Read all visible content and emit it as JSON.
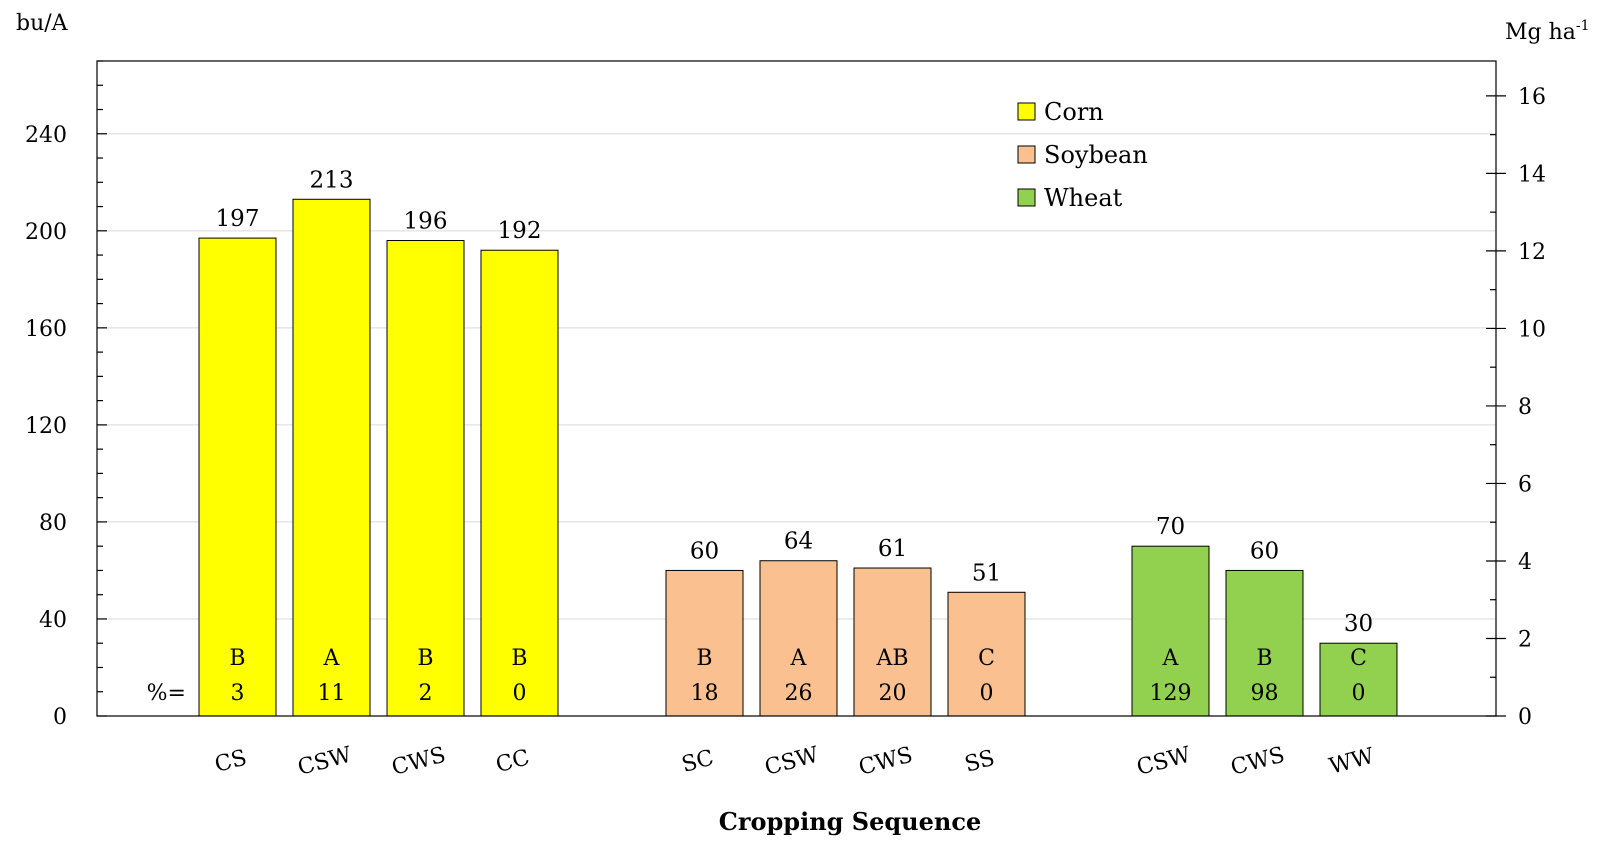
{
  "chart_data": {
    "type": "bar",
    "title": "",
    "xlabel": "Cropping Sequence",
    "ylabel_left": "bu/A",
    "ylabel_right": "Mg ha-1",
    "ylim_left": [
      0,
      270
    ],
    "ylim_right": [
      0,
      16.9
    ],
    "yticks_left": [
      0,
      40,
      80,
      120,
      160,
      200,
      240
    ],
    "yticks_right": [
      0,
      2,
      4,
      6,
      8,
      10,
      12,
      14,
      16
    ],
    "grid": true,
    "legend_position": "top-right",
    "legend": [
      {
        "name": "Corn",
        "color": "#ffff00"
      },
      {
        "name": "Soybean",
        "color": "#fac090"
      },
      {
        "name": "Wheat",
        "color": "#92d050"
      }
    ],
    "percent_prefix": "%=",
    "groups": [
      {
        "crop": "Corn",
        "color": "#ffff00",
        "bars": [
          {
            "category": "CS",
            "value": 197,
            "letter": "B",
            "percent": "3"
          },
          {
            "category": "CSW",
            "value": 213,
            "letter": "A",
            "percent": "11"
          },
          {
            "category": "CWS",
            "value": 196,
            "letter": "B",
            "percent": "2"
          },
          {
            "category": "CC",
            "value": 192,
            "letter": "B",
            "percent": "0"
          }
        ]
      },
      {
        "crop": "Soybean",
        "color": "#fac090",
        "bars": [
          {
            "category": "SC",
            "value": 60,
            "letter": "B",
            "percent": "18"
          },
          {
            "category": "CSW",
            "value": 64,
            "letter": "A",
            "percent": "26"
          },
          {
            "category": "CWS",
            "value": 61,
            "letter": "AB",
            "percent": "20"
          },
          {
            "category": "SS",
            "value": 51,
            "letter": "C",
            "percent": "0"
          }
        ]
      },
      {
        "crop": "Wheat",
        "color": "#92d050",
        "bars": [
          {
            "category": "CSW",
            "value": 70,
            "letter": "A",
            "percent": "129"
          },
          {
            "category": "CWS",
            "value": 60,
            "letter": "B",
            "percent": "98"
          },
          {
            "category": "WW",
            "value": 30,
            "letter": "C",
            "percent": "0"
          }
        ]
      }
    ]
  }
}
